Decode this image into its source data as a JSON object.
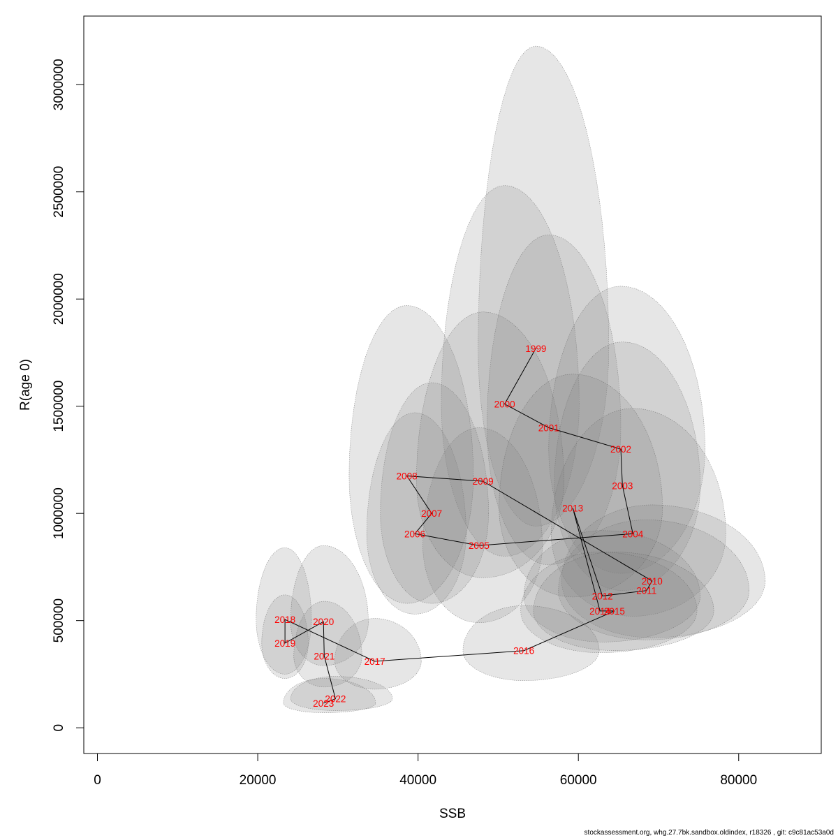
{
  "chart_data": {
    "type": "scatter",
    "xlabel": "SSB",
    "ylabel": "R(age 0)",
    "xlim": [
      -1700,
      90300
    ],
    "ylim": [
      -120000,
      3320000
    ],
    "x_ticks": [
      0,
      20000,
      40000,
      60000,
      80000
    ],
    "y_ticks": [
      0,
      500000,
      1000000,
      1500000,
      2000000,
      2500000,
      3000000
    ],
    "grid": false,
    "series_color": "#ff0000",
    "ellipse_color": "#808080",
    "points": [
      {
        "year": "1999",
        "ssb": 54700,
        "rec": 1770000,
        "ssb_lo": 47500,
        "ssb_hi": 63800,
        "rec_lo": 940000,
        "rec_hi": 3180000
      },
      {
        "year": "2000",
        "ssb": 50800,
        "rec": 1510000,
        "ssb_lo": 42900,
        "ssb_hi": 60100,
        "rec_lo": 800000,
        "rec_hi": 2530000
      },
      {
        "year": "2001",
        "ssb": 56300,
        "rec": 1400000,
        "ssb_lo": 48600,
        "ssb_hi": 65300,
        "rec_lo": 760000,
        "rec_hi": 2300000
      },
      {
        "year": "2002",
        "ssb": 65300,
        "rec": 1300000,
        "ssb_lo": 56300,
        "ssb_hi": 75800,
        "rec_lo": 720000,
        "rec_hi": 2060000
      },
      {
        "year": "2003",
        "ssb": 65500,
        "rec": 1130000,
        "ssb_lo": 57000,
        "ssb_hi": 75200,
        "rec_lo": 640000,
        "rec_hi": 1800000
      },
      {
        "year": "2004",
        "ssb": 66800,
        "rec": 905000,
        "ssb_lo": 56600,
        "ssb_hi": 78400,
        "rec_lo": 520000,
        "rec_hi": 1490000
      },
      {
        "year": "2005",
        "ssb": 47600,
        "rec": 850000,
        "ssb_lo": 40600,
        "ssb_hi": 55500,
        "rec_lo": 490000,
        "rec_hi": 1400000
      },
      {
        "year": "2006",
        "ssb": 39600,
        "rec": 905000,
        "ssb_lo": 33600,
        "ssb_hi": 46000,
        "rec_lo": 530000,
        "rec_hi": 1470000
      },
      {
        "year": "2007",
        "ssb": 41700,
        "rec": 1000000,
        "ssb_lo": 35300,
        "ssb_hi": 48800,
        "rec_lo": 580000,
        "rec_hi": 1610000
      },
      {
        "year": "2008",
        "ssb": 38600,
        "rec": 1175000,
        "ssb_lo": 31400,
        "ssb_hi": 46900,
        "rec_lo": 580000,
        "rec_hi": 1970000
      },
      {
        "year": "2009",
        "ssb": 48100,
        "rec": 1150000,
        "ssb_lo": 39800,
        "ssb_hi": 58200,
        "rec_lo": 700000,
        "rec_hi": 1940000
      },
      {
        "year": "2010",
        "ssb": 69200,
        "rec": 685000,
        "ssb_lo": 57900,
        "ssb_hi": 83300,
        "rec_lo": 420000,
        "rec_hi": 1040000
      },
      {
        "year": "2011",
        "ssb": 68500,
        "rec": 640000,
        "ssb_lo": 57500,
        "ssb_hi": 81300,
        "rec_lo": 410000,
        "rec_hi": 970000
      },
      {
        "year": "2012",
        "ssb": 63000,
        "rec": 615000,
        "ssb_lo": 53200,
        "ssb_hi": 75200,
        "rec_lo": 400000,
        "rec_hi": 920000
      },
      {
        "year": "2013",
        "ssb": 59300,
        "rec": 1025000,
        "ssb_lo": 50100,
        "ssb_hi": 70500,
        "rec_lo": 610000,
        "rec_hi": 1650000
      },
      {
        "year": "2014",
        "ssb": 62700,
        "rec": 545000,
        "ssb_lo": 52800,
        "ssb_hi": 74800,
        "rec_lo": 350000,
        "rec_hi": 820000
      },
      {
        "year": "2015",
        "ssb": 64500,
        "rec": 545000,
        "ssb_lo": 54400,
        "ssb_hi": 76900,
        "rec_lo": 360000,
        "rec_hi": 820000
      },
      {
        "year": "2016",
        "ssb": 53200,
        "rec": 360000,
        "ssb_lo": 45600,
        "ssb_hi": 62600,
        "rec_lo": 220000,
        "rec_hi": 570000
      },
      {
        "year": "2017",
        "ssb": 34600,
        "rec": 310000,
        "ssb_lo": 29600,
        "ssb_hi": 40400,
        "rec_lo": 180000,
        "rec_hi": 510000
      },
      {
        "year": "2018",
        "ssb": 23400,
        "rec": 505000,
        "ssb_lo": 19800,
        "ssb_hi": 26700,
        "rec_lo": 250000,
        "rec_hi": 840000
      },
      {
        "year": "2019",
        "ssb": 23400,
        "rec": 395000,
        "ssb_lo": 20500,
        "ssb_hi": 26300,
        "rec_lo": 230000,
        "rec_hi": 620000
      },
      {
        "year": "2020",
        "ssb": 28200,
        "rec": 495000,
        "ssb_lo": 24100,
        "ssb_hi": 33800,
        "rec_lo": 290000,
        "rec_hi": 850000
      },
      {
        "year": "2021",
        "ssb": 28300,
        "rec": 335000,
        "ssb_lo": 24500,
        "ssb_hi": 33000,
        "rec_lo": 190000,
        "rec_hi": 590000
      },
      {
        "year": "2022",
        "ssb": 29700,
        "rec": 135000,
        "ssb_lo": 24100,
        "ssb_hi": 36800,
        "rec_lo": 80000,
        "rec_hi": 240000
      },
      {
        "year": "2023",
        "ssb": 28200,
        "rec": 115000,
        "ssb_lo": 23200,
        "ssb_hi": 34700,
        "rec_lo": 70000,
        "rec_hi": 230000
      }
    ]
  },
  "footer": "stockassessment.org, whg.27.7bk.sandbox.oldindex, r18326 , git: c9c81ac53a0d"
}
